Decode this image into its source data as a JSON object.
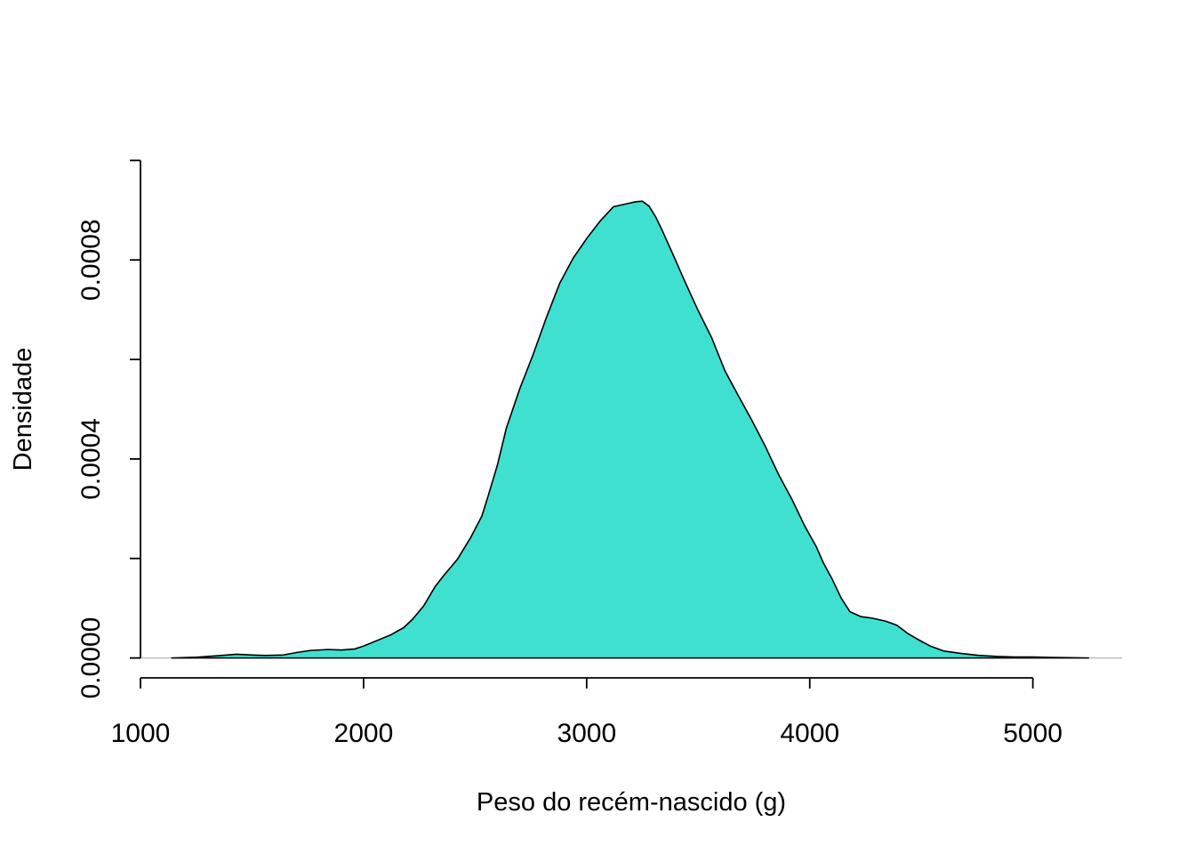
{
  "chart_data": {
    "type": "area",
    "title": "",
    "xlabel": "Peso do recém-nascido (g)",
    "ylabel": "Densidade",
    "xlim": [
      1000,
      5400
    ],
    "ylim": [
      -4e-05,
      0.00104
    ],
    "x_ticks": [
      {
        "value": 1000,
        "label": "1000"
      },
      {
        "value": 2000,
        "label": "2000"
      },
      {
        "value": 3000,
        "label": "3000"
      },
      {
        "value": 4000,
        "label": "4000"
      },
      {
        "value": 5000,
        "label": "5000"
      }
    ],
    "y_ticks": [
      {
        "value": 0,
        "label": "0.0000"
      },
      {
        "value": 0.0002,
        "label": ""
      },
      {
        "value": 0.0004,
        "label": "0.0004"
      },
      {
        "value": 0.0006,
        "label": ""
      },
      {
        "value": 0.0008,
        "label": "0.0008"
      },
      {
        "value": 0.001,
        "label": ""
      }
    ],
    "baseline": 0,
    "grid": false,
    "legend": "none",
    "fill_color": "#40E0D0",
    "line_color": "#000000",
    "baseline_color": "#BEBEBE",
    "series": [
      {
        "x": [
          1140,
          1250,
          1350,
          1430,
          1500,
          1560,
          1640,
          1700,
          1760,
          1840,
          1900,
          1960,
          2000,
          2060,
          2120,
          2180,
          2220,
          2270,
          2320,
          2360,
          2420,
          2480,
          2530,
          2560,
          2600,
          2640,
          2700,
          2760,
          2820,
          2880,
          2940,
          3000,
          3060,
          3120,
          3180,
          3220,
          3250,
          3280,
          3310,
          3340,
          3390,
          3440,
          3500,
          3560,
          3620,
          3680,
          3740,
          3800,
          3860,
          3920,
          3980,
          4030,
          4060,
          4100,
          4140,
          4180,
          4230,
          4280,
          4340,
          4390,
          4440,
          4490,
          4540,
          4600,
          4680,
          4760,
          4840,
          4920,
          5000,
          5080,
          5160,
          5250
        ],
        "y": [
          0,
          1.5e-06,
          4.5e-06,
          7.5e-06,
          6e-06,
          5e-06,
          6e-06,
          1.1e-05,
          1.5e-05,
          1.7e-05,
          1.6e-05,
          1.8e-05,
          2.4e-05,
          3.5e-05,
          4.6e-05,
          6.1e-05,
          7.8e-05,
          0.000105,
          0.000143,
          0.000166,
          0.000198,
          0.000242,
          0.000285,
          0.000328,
          0.000388,
          0.000462,
          0.000541,
          0.00061,
          0.000685,
          0.000754,
          0.000804,
          0.000843,
          0.000878,
          0.000907,
          0.000913,
          0.000917,
          0.000918,
          0.000908,
          0.000886,
          0.000858,
          0.000808,
          0.000757,
          0.000698,
          0.000644,
          0.000577,
          0.000527,
          0.000478,
          0.000426,
          0.000369,
          0.000319,
          0.000263,
          0.000223,
          0.000192,
          0.000159,
          0.000121,
          9.3e-05,
          8.3e-05,
          8e-05,
          7.4e-05,
          6.6e-05,
          4.9e-05,
          3.6e-05,
          2.4e-05,
          1.4e-05,
          9e-06,
          5e-06,
          3e-06,
          2e-06,
          2e-06,
          1e-06,
          5e-07,
          0
        ]
      }
    ]
  }
}
